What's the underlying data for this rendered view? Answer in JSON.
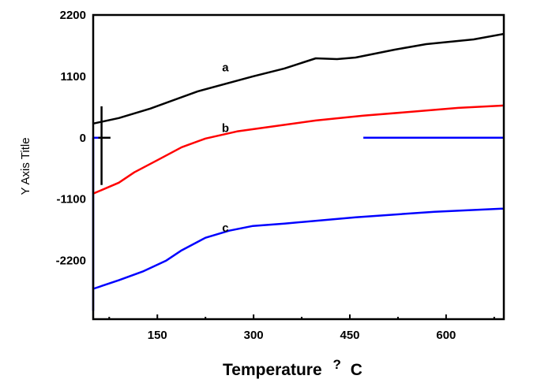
{
  "chart_data": {
    "type": "line",
    "title": "",
    "xlabel": "Temperature",
    "xlabel_symbol": "?",
    "xlabel_unit": "C",
    "ylabel": "Y Axis Title",
    "xlim": [
      50,
      690
    ],
    "ylim": [
      -3250,
      2200
    ],
    "x_ticks": [
      150,
      300,
      450,
      600
    ],
    "x_tick_labels": [
      "150",
      "300",
      "450",
      "600"
    ],
    "x_minor_ticks": [
      75,
      225,
      375,
      525,
      675
    ],
    "y_ticks": [
      2200,
      1100,
      0,
      -1100,
      -2200
    ],
    "y_tick_labels": [
      "2200",
      "1100",
      "0",
      "-1100",
      "-2200"
    ],
    "grid": false,
    "series": [
      {
        "name": "a",
        "color": "#000000",
        "label_at": [
          213,
          1190
        ],
        "x": [
          50,
          90,
          139,
          213,
          299,
          348,
          397,
          430,
          459,
          520,
          569,
          643,
          690
        ],
        "y": [
          254,
          353,
          522,
          832,
          1100,
          1241,
          1424,
          1410,
          1438,
          1579,
          1678,
          1763,
          1861
        ]
      },
      {
        "name": "b",
        "color": "#ff0000",
        "label_at": [
          213,
          100
        ],
        "x": [
          50,
          90,
          114,
          151,
          188,
          225,
          274,
          336,
          397,
          471,
          545,
          619,
          690
        ],
        "y": [
          -1001,
          -804,
          -620,
          -395,
          -169,
          -14,
          113,
          212,
          310,
          395,
          465,
          536,
          578
        ]
      },
      {
        "name": "c",
        "color": "#0000ff",
        "label_at": [
          213,
          -1680
        ],
        "x": [
          50,
          90,
          127,
          164,
          188,
          225,
          262,
          299,
          348,
          459,
          582,
          690
        ],
        "y": [
          -2707,
          -2552,
          -2397,
          -2200,
          -2016,
          -1791,
          -1664,
          -1579,
          -1537,
          -1424,
          -1325,
          -1269
        ]
      }
    ],
    "artifacts": [
      {
        "name": "blue-baseline-right",
        "color": "#0000ff",
        "x": [
          471,
          690
        ],
        "y": [
          0,
          0
        ]
      },
      {
        "name": "blue-baseline-left",
        "color": "#0000ff",
        "x": [
          50,
          62
        ],
        "y": [
          0,
          0
        ]
      },
      {
        "name": "blue-left-edge",
        "color": "#0000ff",
        "x": [
          50,
          50
        ],
        "y": [
          0,
          -3100
        ]
      },
      {
        "name": "black-spike",
        "color": "#000000",
        "x": [
          63,
          63
        ],
        "y": [
          564,
          -846
        ]
      },
      {
        "name": "black-crossbar",
        "color": "#000000",
        "x": [
          58,
          77
        ],
        "y": [
          0,
          0
        ]
      }
    ]
  }
}
